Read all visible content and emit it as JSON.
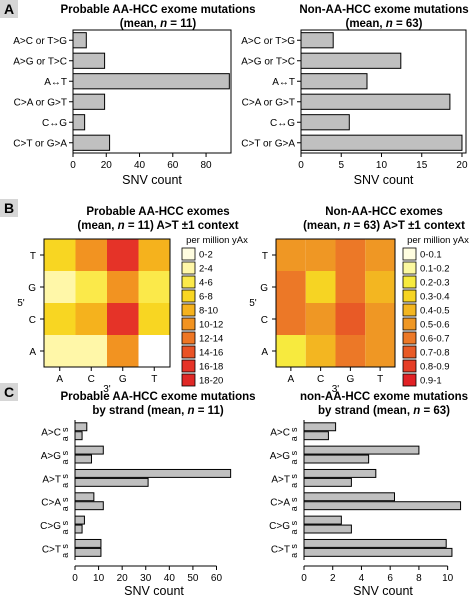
{
  "panel_labels": {
    "a": "A",
    "b": "B",
    "c": "C"
  },
  "colors": {
    "bar_fill": "#c0c0c0",
    "bar_stroke": "#000000",
    "heat_scale_aa": [
      "#fffde0",
      "#fff7a8",
      "#fbe94a",
      "#f8d622",
      "#f5b21d",
      "#f29321",
      "#ee7624",
      "#e95225",
      "#e53328"
    ],
    "heat_scale_non": [
      "#fffde0",
      "#fbf8a0",
      "#f7ea3e",
      "#f6d423",
      "#f3b621",
      "#ef9724",
      "#ec7827",
      "#e85a26",
      "#e53d26",
      "#e12125"
    ]
  },
  "chart_data": [
    {
      "id": "A-left",
      "type": "bar",
      "orientation": "horizontal",
      "title": "Probable AA-HCC exome mutations",
      "subtitle_parts": [
        "(mean, ",
        "n",
        " = 11)"
      ],
      "categories": [
        "A>C or T>G",
        "A>G or T>C",
        "A↔T",
        "C>A or G>T",
        "C↔G",
        "C>T or G>A"
      ],
      "values": [
        8,
        19,
        94,
        19,
        7,
        22
      ],
      "xlabel": "SNV count",
      "xlim": [
        0,
        95
      ],
      "xticks": [
        "0",
        "20",
        "40",
        "60",
        "80"
      ],
      "xtick_values": [
        0,
        20,
        40,
        60,
        80
      ]
    },
    {
      "id": "A-right",
      "type": "bar",
      "orientation": "horizontal",
      "title": "Non-AA-HCC exome mutations",
      "subtitle_parts": [
        "(mean, ",
        "n",
        " = 63)"
      ],
      "categories": [
        "A>C or T>G",
        "A>G or T>C",
        "A↔T",
        "C>A or G>T",
        "C↔G",
        "C>T or G>A"
      ],
      "values": [
        4,
        12.4,
        8.2,
        18.5,
        6,
        20
      ],
      "xlabel": "SNV count",
      "xlim": [
        0,
        20.5
      ],
      "xticks": [
        "0",
        "5",
        "10",
        "15",
        "20"
      ],
      "xtick_values": [
        0,
        5,
        10,
        15,
        20
      ]
    },
    {
      "id": "B-left",
      "type": "heatmap",
      "title": "Probable AA-HCC exomes",
      "subtitle_parts": [
        "(mean, ",
        "n",
        " = 11) A>T ±1 context"
      ],
      "x_categories": [
        "A",
        "C",
        "G",
        "T"
      ],
      "y_categories": [
        "T",
        "G",
        "C",
        "A"
      ],
      "xlabel": "3'",
      "ylabel": "5'",
      "values": [
        [
          7,
          10,
          17,
          8
        ],
        [
          3,
          4,
          11,
          5
        ],
        [
          7,
          8,
          17,
          6
        ],
        [
          2,
          3,
          10,
          0
        ]
      ],
      "legend_title": "per million yAx",
      "legend_labels": [
        "0-2",
        "2-4",
        "4-6",
        "6-8",
        "8-10",
        "10-12",
        "12-14",
        "14-16",
        "16-18",
        "18-20"
      ]
    },
    {
      "id": "B-right",
      "type": "heatmap",
      "title": "Non-AA-HCC exomes",
      "subtitle_parts": [
        "(mean, ",
        "n",
        " = 63) A>T ±1 context"
      ],
      "x_categories": [
        "A",
        "C",
        "G",
        "T"
      ],
      "y_categories": [
        "T",
        "G",
        "C",
        "A"
      ],
      "xlabel": "3'",
      "ylabel": "5'",
      "values": [
        [
          0.55,
          0.55,
          0.7,
          0.6
        ],
        [
          0.65,
          0.35,
          0.7,
          0.45
        ],
        [
          0.65,
          0.5,
          0.75,
          0.55
        ],
        [
          0.3,
          0.45,
          0.65,
          0.55
        ]
      ],
      "legend_title": "per million yAx",
      "legend_labels": [
        "0-0.1",
        "0.1-0.2",
        "0.2-0.3",
        "0.3-0.4",
        "0.4-0.5",
        "0.5-0.6",
        "0.6-0.7",
        "0.7-0.8",
        "0.8-0.9",
        "0.9-1"
      ]
    },
    {
      "id": "C-left",
      "type": "bar",
      "orientation": "horizontal",
      "title_parts": [
        "Probable AA-HCC exome mutations",
        "by strand (mean, ",
        "n",
        " = 11)"
      ],
      "categories": [
        "A>C",
        "A>G",
        "A>T",
        "C>A",
        "C>G",
        "C>T"
      ],
      "strand_labels": [
        "s",
        "a"
      ],
      "series": [
        {
          "name": "s",
          "values": [
            5,
            12,
            66,
            8,
            4,
            11
          ]
        },
        {
          "name": "a",
          "values": [
            3,
            7,
            31,
            12,
            3,
            11
          ]
        }
      ],
      "xlabel": "SNV count",
      "xlim": [
        0,
        67
      ],
      "xticks": [
        "0",
        "10",
        "20",
        "30",
        "40",
        "50",
        "60"
      ],
      "xtick_values": [
        0,
        10,
        20,
        30,
        40,
        50,
        60
      ]
    },
    {
      "id": "C-right",
      "type": "bar",
      "orientation": "horizontal",
      "title_parts": [
        "non-AA-HCC exome mutations",
        "by strand (mean, ",
        "n",
        " = 63)"
      ],
      "categories": [
        "A>C",
        "A>G",
        "A>T",
        "C>A",
        "C>G",
        "C>T"
      ],
      "strand_labels": [
        "s",
        "a"
      ],
      "series": [
        {
          "name": "s",
          "values": [
            2.2,
            8,
            5,
            6.3,
            2.6,
            9.9
          ]
        },
        {
          "name": "a",
          "values": [
            1.7,
            4.5,
            3.3,
            10.9,
            3.3,
            10.3
          ]
        }
      ],
      "xlabel": "SNV count",
      "xlim": [
        0,
        11
      ],
      "xticks": [
        "0",
        "2",
        "4",
        "6",
        "8",
        "10"
      ],
      "xtick_values": [
        0,
        2,
        4,
        6,
        8,
        10
      ]
    }
  ]
}
